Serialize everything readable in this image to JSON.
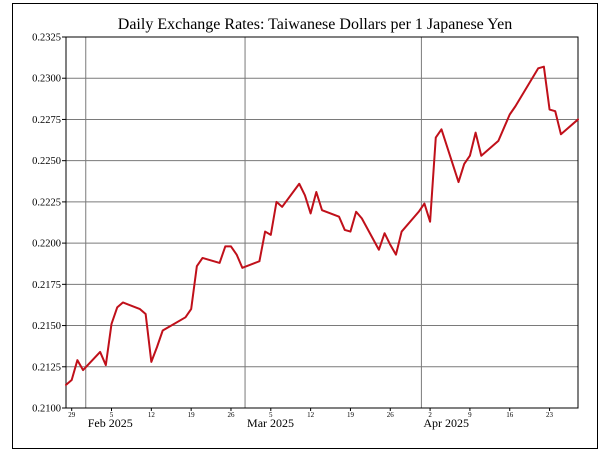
{
  "chart_data": {
    "type": "line",
    "title": "Daily Exchange Rates: Taiwanese Dollars per 1 Japanese Yen",
    "xlabel": "",
    "ylabel": "",
    "grid": true,
    "legend": "none",
    "ylim": [
      0.21,
      0.2325
    ],
    "y_ticks": [
      "0.2100",
      "0.2125",
      "0.2150",
      "0.2175",
      "0.2200",
      "0.2225",
      "0.2250",
      "0.2275",
      "0.2300",
      "0.2325"
    ],
    "xlim": [
      "2025-01-28",
      "2025-04-28"
    ],
    "x_day_ticks": [
      {
        "date": "2025-01-29",
        "label": "29"
      },
      {
        "date": "2025-02-05",
        "label": "5"
      },
      {
        "date": "2025-02-12",
        "label": "12"
      },
      {
        "date": "2025-02-19",
        "label": "19"
      },
      {
        "date": "2025-02-26",
        "label": "26"
      },
      {
        "date": "2025-03-05",
        "label": "5"
      },
      {
        "date": "2025-03-12",
        "label": "12"
      },
      {
        "date": "2025-03-19",
        "label": "19"
      },
      {
        "date": "2025-03-26",
        "label": "26"
      },
      {
        "date": "2025-04-02",
        "label": "2"
      },
      {
        "date": "2025-04-09",
        "label": "9"
      },
      {
        "date": "2025-04-16",
        "label": "16"
      },
      {
        "date": "2025-04-23",
        "label": "23"
      }
    ],
    "month_labels": [
      {
        "date": "2025-02-01",
        "label": "Feb 2025"
      },
      {
        "date": "2025-03-01",
        "label": "Mar 2025"
      },
      {
        "date": "2025-04-01",
        "label": "Apr 2025"
      }
    ],
    "series": [
      {
        "color": "#c0101a",
        "x": [
          "2025-01-28",
          "2025-01-29",
          "2025-01-30",
          "2025-01-31",
          "2025-02-03",
          "2025-02-04",
          "2025-02-05",
          "2025-02-06",
          "2025-02-07",
          "2025-02-10",
          "2025-02-11",
          "2025-02-12",
          "2025-02-13",
          "2025-02-14",
          "2025-02-18",
          "2025-02-19",
          "2025-02-20",
          "2025-02-21",
          "2025-02-24",
          "2025-02-25",
          "2025-02-26",
          "2025-02-27",
          "2025-02-28",
          "2025-03-03",
          "2025-03-04",
          "2025-03-05",
          "2025-03-06",
          "2025-03-07",
          "2025-03-10",
          "2025-03-11",
          "2025-03-12",
          "2025-03-13",
          "2025-03-14",
          "2025-03-17",
          "2025-03-18",
          "2025-03-19",
          "2025-03-20",
          "2025-03-21",
          "2025-03-24",
          "2025-03-25",
          "2025-03-26",
          "2025-03-27",
          "2025-03-28",
          "2025-03-31",
          "2025-04-01",
          "2025-04-02",
          "2025-04-03",
          "2025-04-04",
          "2025-04-07",
          "2025-04-08",
          "2025-04-09",
          "2025-04-10",
          "2025-04-11",
          "2025-04-14",
          "2025-04-15",
          "2025-04-16",
          "2025-04-17",
          "2025-04-21",
          "2025-04-22",
          "2025-04-23",
          "2025-04-24",
          "2025-04-25",
          "2025-04-28"
        ],
        "values": [
          0.2114,
          0.2117,
          0.2129,
          0.2123,
          0.2134,
          0.2126,
          0.2151,
          0.2161,
          0.2164,
          0.216,
          0.2157,
          0.2128,
          0.2137,
          0.2147,
          0.2155,
          0.216,
          0.2186,
          0.2191,
          0.2188,
          0.2198,
          0.2198,
          0.2193,
          0.2185,
          0.2189,
          0.2207,
          0.2205,
          0.2225,
          0.2222,
          0.2236,
          0.2229,
          0.2218,
          0.2231,
          0.222,
          0.2216,
          0.2208,
          0.2207,
          0.2219,
          0.2215,
          0.2196,
          0.2206,
          0.2199,
          0.2193,
          0.2207,
          0.2219,
          0.2224,
          0.2213,
          0.2264,
          0.2269,
          0.2237,
          0.2248,
          0.2253,
          0.2267,
          0.2253,
          0.2262,
          0.227,
          0.2278,
          0.2283,
          0.2306,
          0.2307,
          0.2281,
          0.228,
          0.2266,
          0.2275
        ]
      }
    ]
  }
}
